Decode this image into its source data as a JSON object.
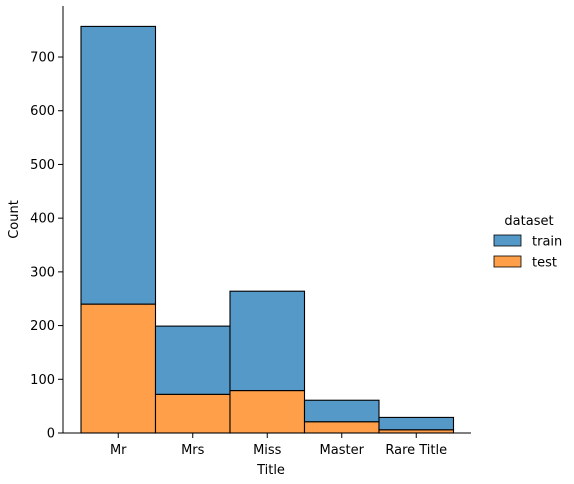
{
  "chart_data": {
    "type": "bar",
    "stacked": true,
    "categories": [
      "Mr",
      "Mrs",
      "Miss",
      "Master",
      "Rare Title"
    ],
    "series": [
      {
        "name": "test",
        "values": [
          240,
          72,
          79,
          21,
          6
        ],
        "color": "#ff9f4a"
      },
      {
        "name": "train",
        "values": [
          517,
          127,
          185,
          40,
          23
        ],
        "color": "#5599c8"
      }
    ],
    "xlabel": "Title",
    "ylabel": "Count",
    "ylim": [
      0,
      795
    ],
    "yticks": [
      0,
      100,
      200,
      300,
      400,
      500,
      600,
      700
    ],
    "grid": false,
    "legend": {
      "title": "dataset",
      "placement": "center-right",
      "entries": [
        {
          "name": "train",
          "color": "#5599c8"
        },
        {
          "name": "test",
          "color": "#ff9f4a"
        }
      ]
    }
  }
}
